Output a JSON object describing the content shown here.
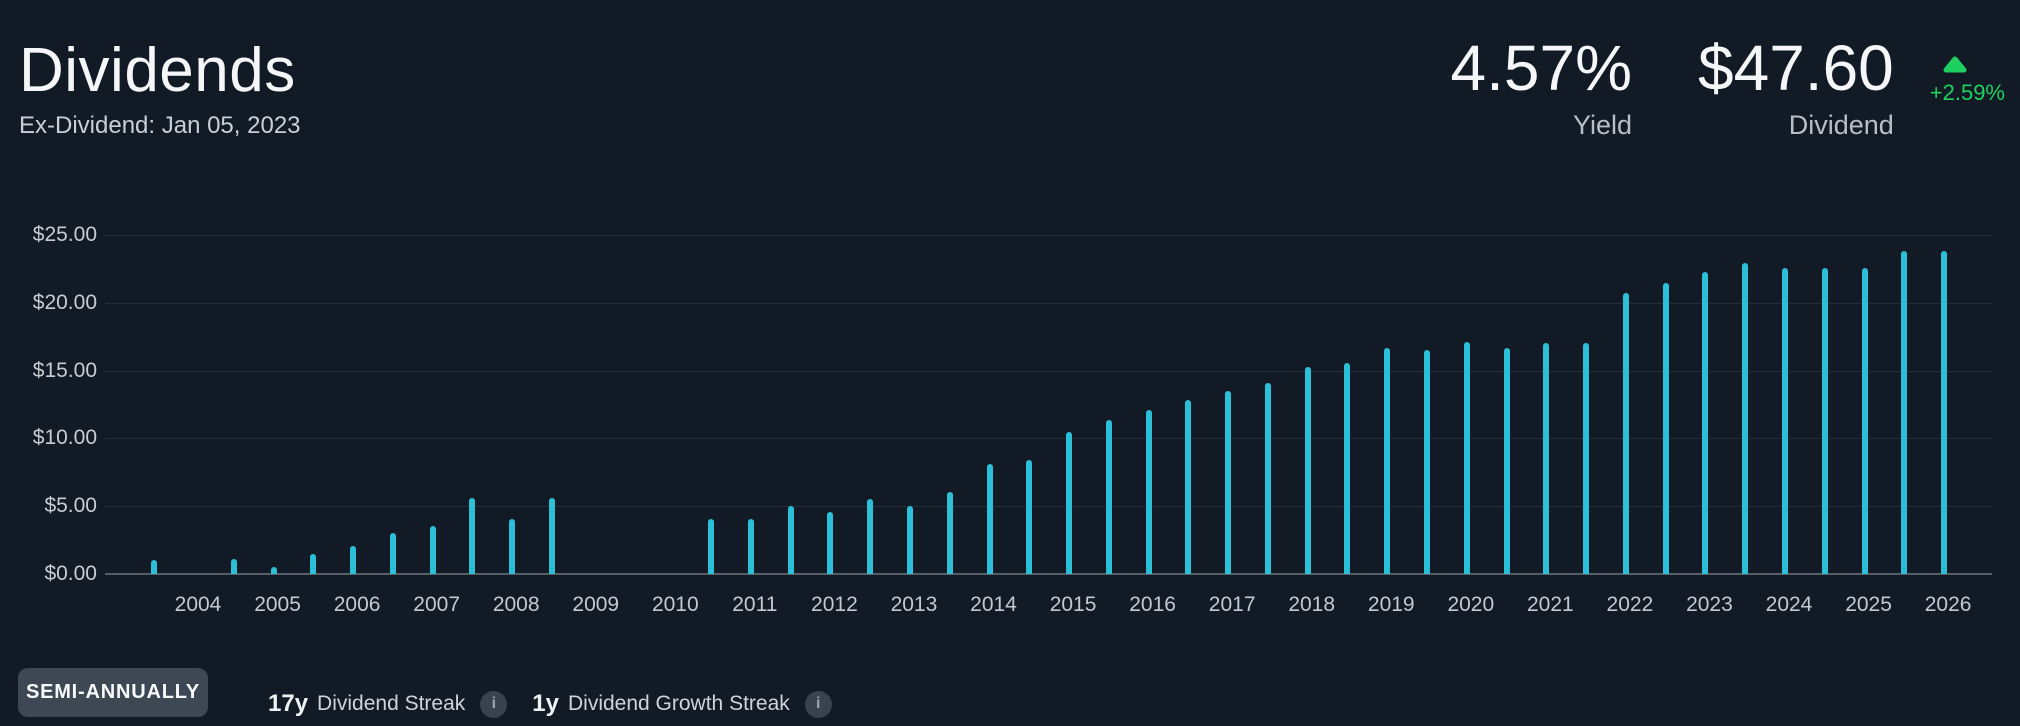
{
  "header": {
    "title": "Dividends",
    "subtitle": "Ex-Dividend: Jan 05, 2023",
    "stats": [
      {
        "value": "4.57%",
        "label": "Yield"
      },
      {
        "value": "$47.60",
        "label": "Dividend"
      }
    ],
    "change": {
      "value": "+2.59%",
      "direction": "up"
    }
  },
  "colors": {
    "background": "#121b25",
    "bar_accent": "#2bc0d8",
    "positive_green": "#1ed05f",
    "button_bg": "#3d4854"
  },
  "chart_data": {
    "type": "bar",
    "title": "",
    "xlabel": "",
    "ylabel": "",
    "unit": "$",
    "frequency": "semi-annual",
    "grid": true,
    "legend": false,
    "ylim": [
      0,
      25
    ],
    "ytick_values": [
      0,
      5,
      10,
      15,
      20,
      25
    ],
    "ytick_labels": [
      "$0.00",
      "$5.00",
      "$10.00",
      "$15.00",
      "$20.00",
      "$25.00"
    ],
    "year_labels": [
      2004,
      2005,
      2006,
      2007,
      2008,
      2009,
      2010,
      2011,
      2012,
      2013,
      2014,
      2015,
      2016,
      2017,
      2018,
      2019,
      2020,
      2021,
      2022,
      2023,
      2024,
      2025,
      2026
    ],
    "bars": [
      {
        "period": "2003 H2",
        "value": 1.05
      },
      {
        "period": "2004 H2",
        "value": 1.1
      },
      {
        "period": "2005 H1",
        "value": 0.5
      },
      {
        "period": "2005 H2",
        "value": 1.5
      },
      {
        "period": "2006 H1",
        "value": 2.05
      },
      {
        "period": "2006 H2",
        "value": 3.0
      },
      {
        "period": "2007 H1",
        "value": 3.55
      },
      {
        "period": "2007 H2",
        "value": 5.6
      },
      {
        "period": "2008 H1",
        "value": 4.05
      },
      {
        "period": "2008 H2",
        "value": 5.6
      },
      {
        "period": "2010 H2",
        "value": 4.05
      },
      {
        "period": "2011 H1",
        "value": 4.05
      },
      {
        "period": "2011 H2",
        "value": 5.0
      },
      {
        "period": "2012 H1",
        "value": 4.55
      },
      {
        "period": "2012 H2",
        "value": 5.5
      },
      {
        "period": "2013 H1",
        "value": 5.0
      },
      {
        "period": "2013 H2",
        "value": 6.05
      },
      {
        "period": "2014 H1",
        "value": 8.1
      },
      {
        "period": "2014 H2",
        "value": 8.4
      },
      {
        "period": "2015 H1",
        "value": 10.45
      },
      {
        "period": "2015 H2",
        "value": 11.35
      },
      {
        "period": "2016 H1",
        "value": 12.1
      },
      {
        "period": "2016 H2",
        "value": 12.8
      },
      {
        "period": "2017 H1",
        "value": 13.5
      },
      {
        "period": "2017 H2",
        "value": 14.1
      },
      {
        "period": "2018 H1",
        "value": 15.3
      },
      {
        "period": "2018 H2",
        "value": 15.55
      },
      {
        "period": "2019 H1",
        "value": 16.7
      },
      {
        "period": "2019 H2",
        "value": 16.5
      },
      {
        "period": "2020 H1",
        "value": 17.1
      },
      {
        "period": "2020 H2",
        "value": 16.7
      },
      {
        "period": "2021 H1",
        "value": 17.0
      },
      {
        "period": "2021 H2",
        "value": 17.0
      },
      {
        "period": "2022 H1",
        "value": 20.7
      },
      {
        "period": "2022 H2",
        "value": 21.45
      },
      {
        "period": "2023 H1",
        "value": 22.25
      },
      {
        "period": "2023 H2",
        "value": 22.9
      },
      {
        "period": "2024 H1",
        "value": 22.6
      },
      {
        "period": "2024 H2",
        "value": 22.6
      },
      {
        "period": "2025 H1",
        "value": 22.6
      },
      {
        "period": "2025 H2",
        "value": 23.8
      },
      {
        "period": "2026 H1",
        "value": 23.8
      }
    ]
  },
  "footer": {
    "frequency_button": "SEMI-ANNUALLY",
    "streaks": [
      {
        "years": "17y",
        "label": "Dividend Streak",
        "icon": "info"
      },
      {
        "years": "1y",
        "label": "Dividend Growth Streak",
        "icon": "info"
      }
    ],
    "info_icon_glyph": "i"
  }
}
